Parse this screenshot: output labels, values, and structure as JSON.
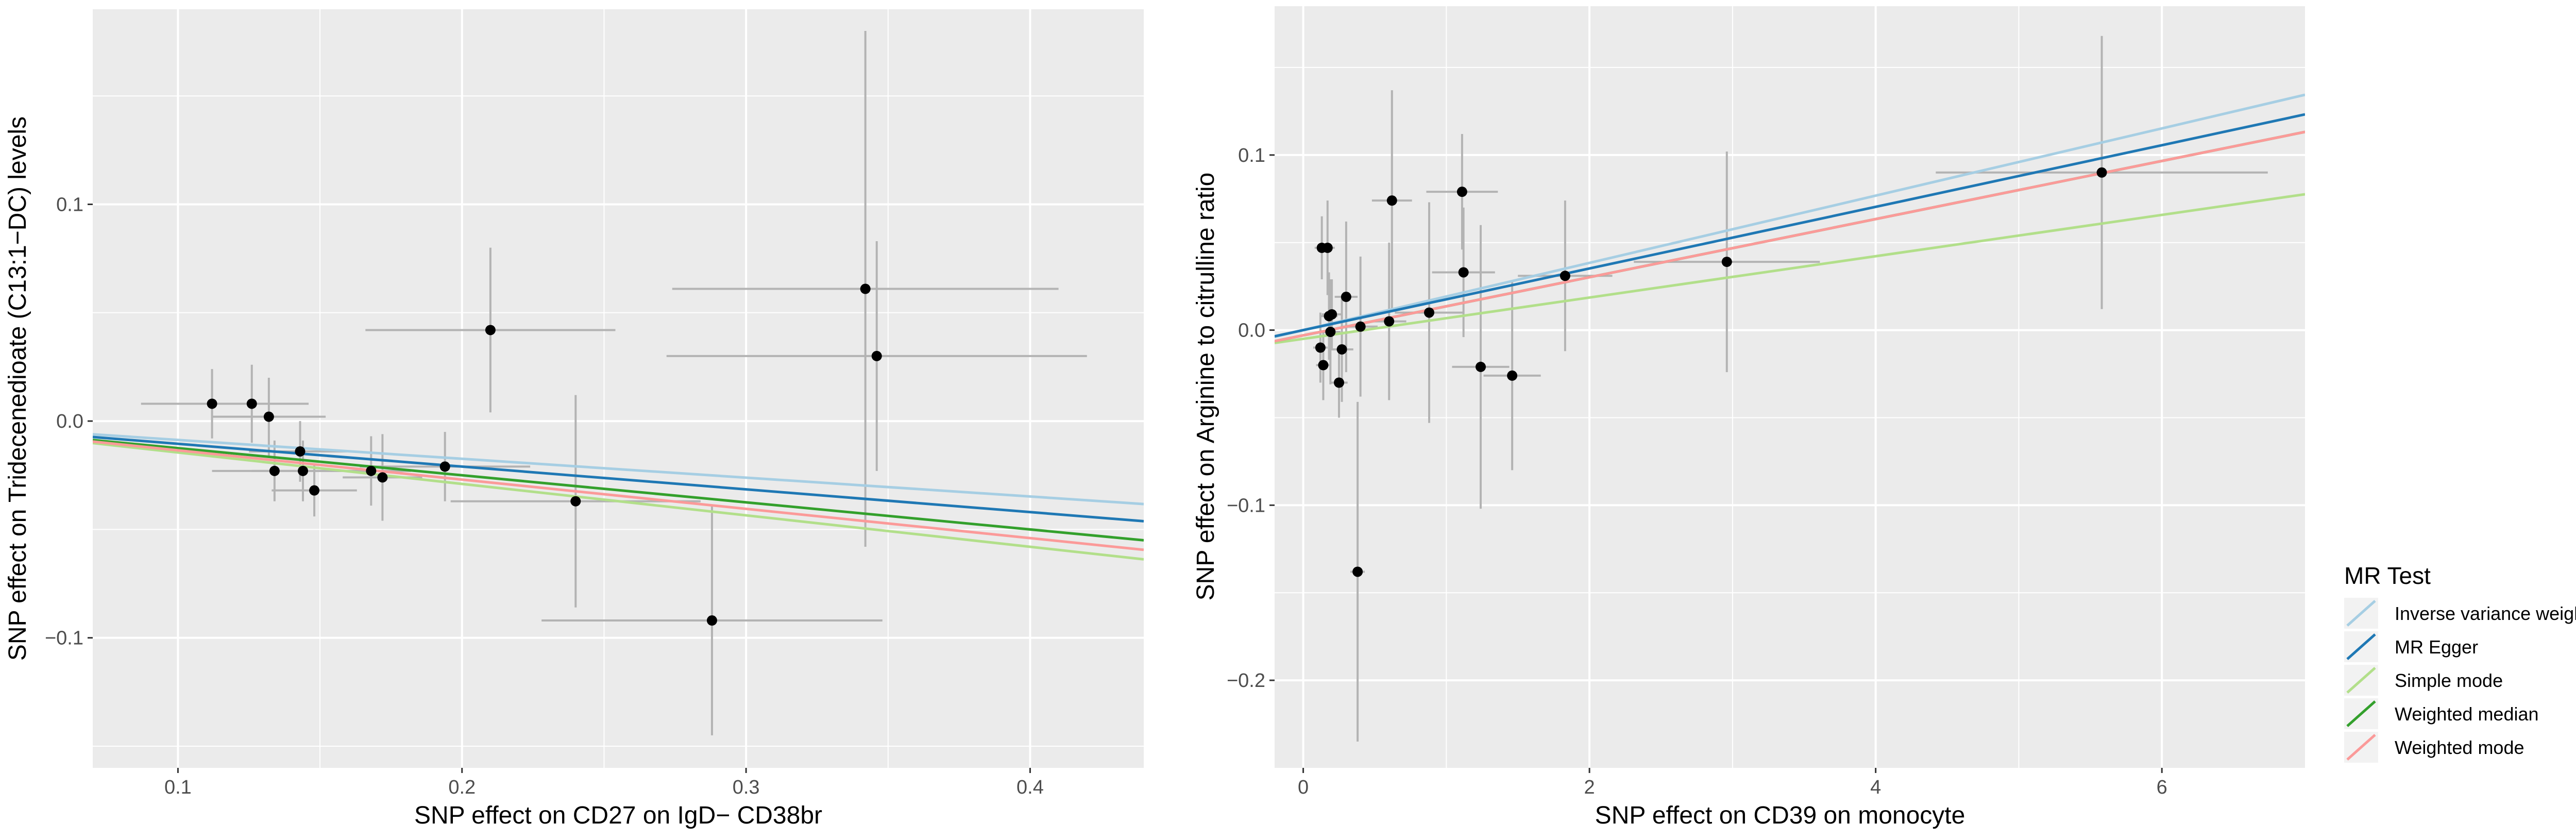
{
  "legend": {
    "title": "MR Test",
    "items": [
      {
        "label": "Inverse variance weighted",
        "color": "#a6cee3"
      },
      {
        "label": "MR Egger",
        "color": "#1f78b4"
      },
      {
        "label": "Simple mode",
        "color": "#b2df8a"
      },
      {
        "label": "Weighted median",
        "color": "#33a02c"
      },
      {
        "label": "Weighted mode",
        "color": "#fb9a99"
      }
    ]
  },
  "chart_data": [
    {
      "type": "scatter",
      "xlabel": "SNP effect on CD27 on IgD− CD38br",
      "ylabel": "SNP effect on Tridecenedioate (C13:1−DC) levels",
      "xlim": [
        0.07,
        0.44
      ],
      "ylim": [
        -0.16,
        0.19
      ],
      "xticks": [
        0.1,
        0.2,
        0.3,
        0.4
      ],
      "xtick_labels": [
        "0.1",
        "0.2",
        "0.3",
        "0.4"
      ],
      "yticks": [
        -0.1,
        0.0,
        0.1
      ],
      "ytick_labels": [
        "−0.1",
        "0.0",
        "0.1"
      ],
      "grid": true,
      "points": [
        {
          "x": 0.112,
          "y": 0.008,
          "xerr": 0.025,
          "yerr": 0.016
        },
        {
          "x": 0.126,
          "y": 0.008,
          "xerr": 0.02,
          "yerr": 0.018
        },
        {
          "x": 0.132,
          "y": 0.002,
          "xerr": 0.02,
          "yerr": 0.018
        },
        {
          "x": 0.134,
          "y": -0.023,
          "xerr": 0.022,
          "yerr": 0.014
        },
        {
          "x": 0.143,
          "y": -0.014,
          "xerr": 0.018,
          "yerr": 0.014
        },
        {
          "x": 0.144,
          "y": -0.023,
          "xerr": 0.018,
          "yerr": 0.014
        },
        {
          "x": 0.148,
          "y": -0.032,
          "xerr": 0.015,
          "yerr": 0.012
        },
        {
          "x": 0.168,
          "y": -0.023,
          "xerr": 0.014,
          "yerr": 0.016
        },
        {
          "x": 0.172,
          "y": -0.026,
          "xerr": 0.014,
          "yerr": 0.02
        },
        {
          "x": 0.194,
          "y": -0.021,
          "xerr": 0.03,
          "yerr": 0.016
        },
        {
          "x": 0.21,
          "y": 0.042,
          "xerr": 0.044,
          "yerr": 0.038
        },
        {
          "x": 0.24,
          "y": -0.037,
          "xerr": 0.044,
          "yerr": 0.049
        },
        {
          "x": 0.288,
          "y": -0.092,
          "xerr": 0.06,
          "yerr": 0.053
        },
        {
          "x": 0.342,
          "y": 0.061,
          "xerr": 0.068,
          "yerr": 0.119
        },
        {
          "x": 0.346,
          "y": 0.03,
          "xerr": 0.074,
          "yerr": 0.053
        }
      ],
      "series": [
        {
          "name": "Inverse variance weighted",
          "color": "#a6cee3",
          "intercept": 0.0,
          "slope": -0.087
        },
        {
          "name": "MR Egger",
          "color": "#1f78b4",
          "intercept": 0.0,
          "slope": -0.105
        },
        {
          "name": "Simple mode",
          "color": "#b2df8a",
          "intercept": 0.0,
          "slope": -0.145
        },
        {
          "name": "Weighted median",
          "color": "#33a02c",
          "intercept": 0.0,
          "slope": -0.125
        },
        {
          "name": "Weighted mode",
          "color": "#fb9a99",
          "intercept": 0.0,
          "slope": -0.135
        }
      ]
    },
    {
      "type": "scatter",
      "xlabel": "SNP effect on CD39 on monocyte",
      "ylabel": "SNP effect on Arginine to citrulline ratio",
      "xlim": [
        -0.2,
        7.0
      ],
      "ylim": [
        -0.25,
        0.185
      ],
      "xticks": [
        0,
        2,
        4,
        6
      ],
      "xtick_labels": [
        "0",
        "2",
        "4",
        "6"
      ],
      "yticks": [
        -0.2,
        -0.1,
        0.0,
        0.1
      ],
      "ytick_labels": [
        "−0.2",
        "−0.1",
        "0.0",
        "0.1"
      ],
      "grid": true,
      "points": [
        {
          "x": 0.12,
          "y": -0.01,
          "xerr": 0.05,
          "yerr": 0.02
        },
        {
          "x": 0.13,
          "y": 0.047,
          "xerr": 0.05,
          "yerr": 0.018
        },
        {
          "x": 0.14,
          "y": -0.02,
          "xerr": 0.05,
          "yerr": 0.02
        },
        {
          "x": 0.17,
          "y": 0.047,
          "xerr": 0.05,
          "yerr": 0.027
        },
        {
          "x": 0.18,
          "y": 0.008,
          "xerr": 0.06,
          "yerr": 0.025
        },
        {
          "x": 0.19,
          "y": -0.001,
          "xerr": 0.07,
          "yerr": 0.03
        },
        {
          "x": 0.2,
          "y": 0.009,
          "xerr": 0.07,
          "yerr": 0.02
        },
        {
          "x": 0.25,
          "y": -0.03,
          "xerr": 0.06,
          "yerr": 0.02
        },
        {
          "x": 0.27,
          "y": -0.011,
          "xerr": 0.08,
          "yerr": 0.03
        },
        {
          "x": 0.3,
          "y": 0.019,
          "xerr": 0.08,
          "yerr": 0.043
        },
        {
          "x": 0.38,
          "y": -0.138,
          "xerr": 0.05,
          "yerr": 0.097
        },
        {
          "x": 0.4,
          "y": 0.002,
          "xerr": 0.12,
          "yerr": 0.04
        },
        {
          "x": 0.6,
          "y": 0.005,
          "xerr": 0.12,
          "yerr": 0.045
        },
        {
          "x": 0.62,
          "y": 0.074,
          "xerr": 0.14,
          "yerr": 0.063
        },
        {
          "x": 0.88,
          "y": 0.01,
          "xerr": 0.24,
          "yerr": 0.063
        },
        {
          "x": 1.11,
          "y": 0.079,
          "xerr": 0.25,
          "yerr": 0.033
        },
        {
          "x": 1.12,
          "y": 0.033,
          "xerr": 0.22,
          "yerr": 0.037
        },
        {
          "x": 1.24,
          "y": -0.021,
          "xerr": 0.2,
          "yerr": 0.081
        },
        {
          "x": 1.46,
          "y": -0.026,
          "xerr": 0.2,
          "yerr": 0.054
        },
        {
          "x": 1.83,
          "y": 0.031,
          "xerr": 0.33,
          "yerr": 0.043
        },
        {
          "x": 2.96,
          "y": 0.039,
          "xerr": 0.65,
          "yerr": 0.063
        },
        {
          "x": 5.58,
          "y": 0.09,
          "xerr": 1.16,
          "yerr": 0.078
        }
      ],
      "series": [
        {
          "name": "Inverse variance weighted",
          "color": "#a6cee3",
          "intercept": 0.0,
          "slope": 0.0192
        },
        {
          "name": "MR Egger",
          "color": "#1f78b4",
          "intercept": 0.0,
          "slope": 0.0176
        },
        {
          "name": "Simple mode",
          "color": "#b2df8a",
          "intercept": -0.005,
          "slope": 0.0118
        },
        {
          "name": "Weighted median",
          "color": "#33a02c",
          "intercept": -0.003,
          "slope": 0.0166
        },
        {
          "name": "Weighted mode",
          "color": "#fb9a99",
          "intercept": -0.003,
          "slope": 0.0166
        }
      ]
    }
  ]
}
